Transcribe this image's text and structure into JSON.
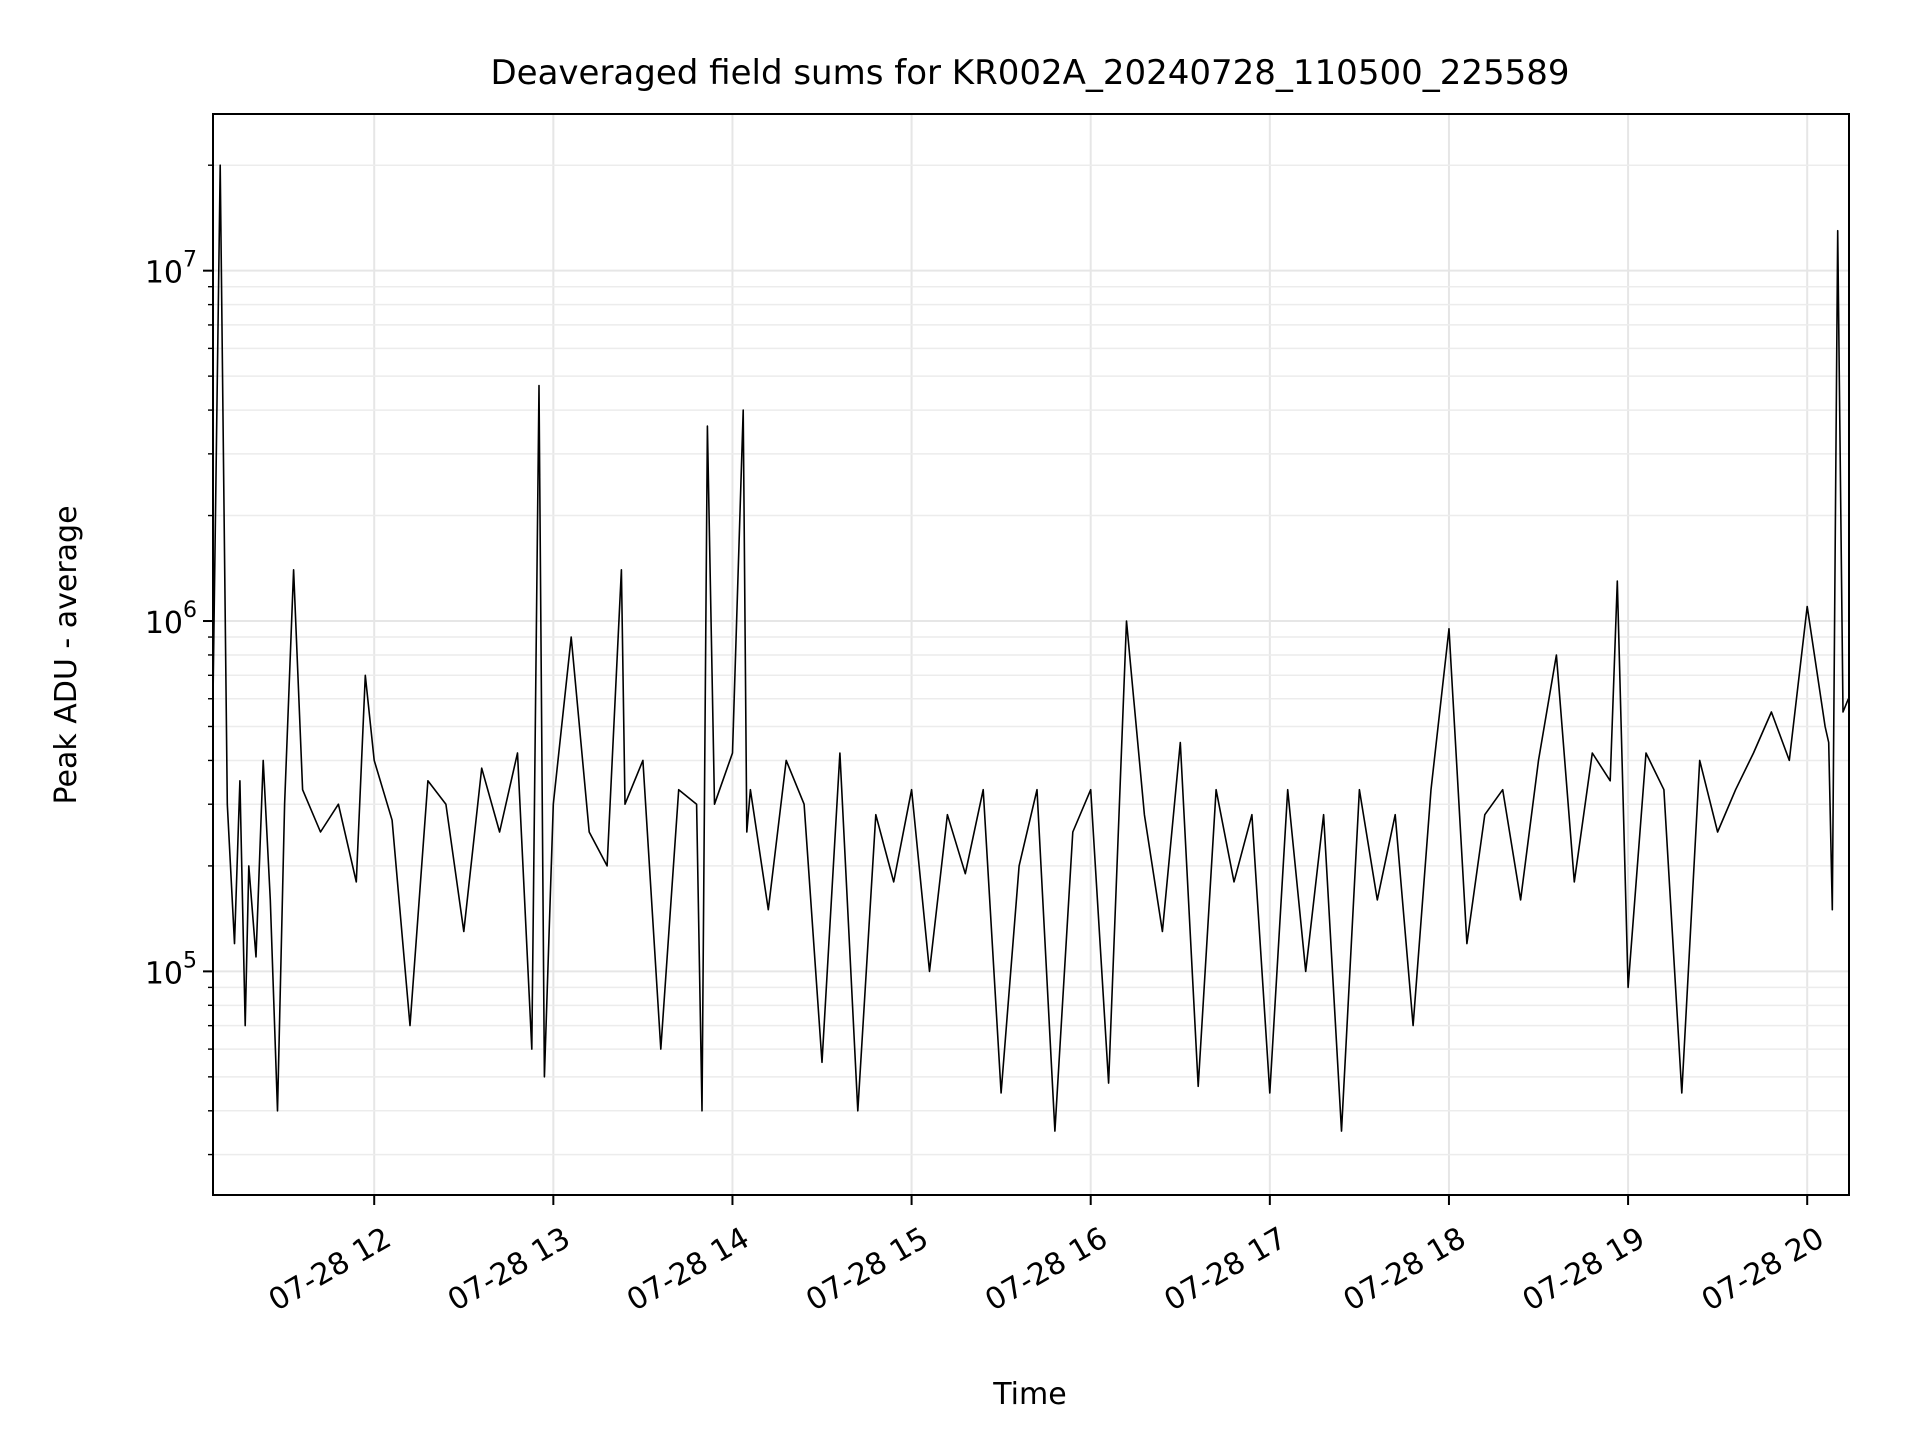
{
  "chart_data": {
    "type": "line",
    "title": "Deaveraged field sums for KR002A_20240728_110500_225589",
    "xlabel": "Time",
    "ylabel": "Peak ADU - average",
    "yscale": "log",
    "grid": true,
    "xlim": [
      "07-28 11:06",
      "07-28 20:14"
    ],
    "ylim": [
      23000,
      28000000
    ],
    "x_ticks": [
      {
        "label": "07-28 12",
        "hour": 12
      },
      {
        "label": "07-28 13",
        "hour": 13
      },
      {
        "label": "07-28 14",
        "hour": 14
      },
      {
        "label": "07-28 15",
        "hour": 15
      },
      {
        "label": "07-28 16",
        "hour": 16
      },
      {
        "label": "07-28 17",
        "hour": 17
      },
      {
        "label": "07-28 18",
        "hour": 18
      },
      {
        "label": "07-28 19",
        "hour": 19
      },
      {
        "label": "07-28 20",
        "hour": 20
      }
    ],
    "y_ticks": [
      {
        "base": "10",
        "exp": "5",
        "value": 100000
      },
      {
        "base": "10",
        "exp": "6",
        "value": 1000000
      },
      {
        "base": "10",
        "exp": "7",
        "value": 10000000
      }
    ],
    "series": [
      {
        "color": "#000000",
        "x_hours": [
          11.1,
          11.14,
          11.18,
          11.22,
          11.25,
          11.28,
          11.3,
          11.34,
          11.38,
          11.42,
          11.46,
          11.5,
          11.55,
          11.6,
          11.7,
          11.8,
          11.9,
          11.95,
          12.0,
          12.1,
          12.2,
          12.3,
          12.4,
          12.5,
          12.6,
          12.7,
          12.8,
          12.88,
          12.92,
          12.95,
          13.0,
          13.1,
          13.2,
          13.3,
          13.38,
          13.4,
          13.5,
          13.6,
          13.7,
          13.8,
          13.83,
          13.86,
          13.9,
          14.0,
          14.06,
          14.08,
          14.1,
          14.2,
          14.3,
          14.4,
          14.5,
          14.6,
          14.7,
          14.8,
          14.9,
          15.0,
          15.1,
          15.2,
          15.3,
          15.4,
          15.5,
          15.6,
          15.7,
          15.8,
          15.9,
          16.0,
          16.1,
          16.2,
          16.3,
          16.4,
          16.5,
          16.6,
          16.7,
          16.8,
          16.9,
          17.0,
          17.1,
          17.2,
          17.3,
          17.4,
          17.5,
          17.6,
          17.7,
          17.8,
          17.9,
          18.0,
          18.1,
          18.2,
          18.3,
          18.4,
          18.5,
          18.6,
          18.7,
          18.8,
          18.9,
          18.94,
          19.0,
          19.1,
          19.2,
          19.3,
          19.4,
          19.5,
          19.6,
          19.7,
          19.8,
          19.9,
          20.0,
          20.1,
          20.12,
          20.14,
          20.17,
          20.2,
          20.23
        ],
        "y": [
          600000,
          20000000,
          300000,
          120000,
          350000,
          70000,
          200000,
          110000,
          400000,
          160000,
          40000,
          300000,
          1400000,
          330000,
          250000,
          300000,
          180000,
          700000,
          400000,
          270000,
          70000,
          350000,
          300000,
          130000,
          380000,
          250000,
          420000,
          60000,
          4700000,
          50000,
          300000,
          900000,
          250000,
          200000,
          1400000,
          300000,
          400000,
          60000,
          330000,
          300000,
          40000,
          3600000,
          300000,
          420000,
          4000000,
          250000,
          330000,
          150000,
          400000,
          300000,
          55000,
          420000,
          40000,
          280000,
          180000,
          330000,
          100000,
          280000,
          190000,
          330000,
          45000,
          200000,
          330000,
          35000,
          250000,
          330000,
          48000,
          1000000,
          280000,
          130000,
          450000,
          47000,
          330000,
          180000,
          280000,
          45000,
          330000,
          100000,
          280000,
          35000,
          330000,
          160000,
          280000,
          70000,
          330000,
          950000,
          120000,
          280000,
          330000,
          160000,
          400000,
          800000,
          180000,
          420000,
          350000,
          1300000,
          90000,
          420000,
          330000,
          45000,
          400000,
          250000,
          330000,
          420000,
          550000,
          400000,
          1100000,
          500000,
          450000,
          150000,
          13000000,
          550000,
          600000
        ]
      }
    ]
  }
}
